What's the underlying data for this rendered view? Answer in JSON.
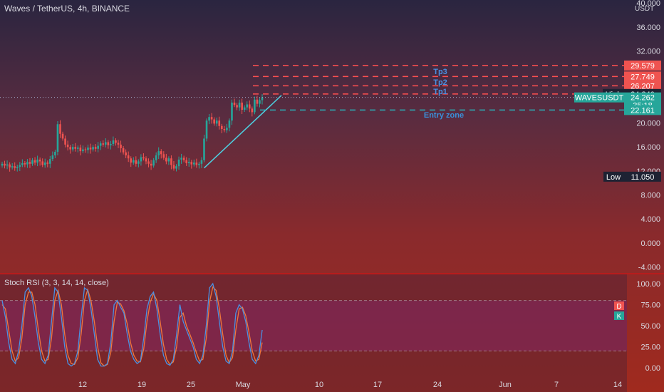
{
  "header": {
    "title": "Waves / TetherUS, 4h, BINANCE",
    "currency": "USDT"
  },
  "indicator": {
    "title": "Stoch RSI (3, 3, 14, 14, close)",
    "d_label": "D",
    "k_label": "K"
  },
  "colors": {
    "up": "#26a69a",
    "down": "#ef5350",
    "target_line": "#ff5050",
    "entry_line": "#2ab0b8",
    "trend_line": "#4dd0e1",
    "stoch_k": "#4a90e2",
    "stoch_d": "#f0763c"
  },
  "chart_data": [
    {
      "type": "candlestick",
      "title": "Waves / TetherUS, 4h, BINANCE",
      "y_ticks": [
        "40.000",
        "36.000",
        "32.000",
        "28.000",
        "24.000",
        "20.000",
        "16.000",
        "12.000",
        "8.000",
        "4.000",
        "0.000",
        "-4.000"
      ],
      "x_ticks": [
        "12",
        "19",
        "25",
        "May",
        "10",
        "17",
        "24",
        "Jun",
        "7",
        "14"
      ],
      "ylim": [
        -5,
        40.5
      ],
      "current_price": "24.262",
      "countdown": "35:18",
      "symbol": "WAVESUSDT",
      "high": {
        "label": "High",
        "value": "24.840"
      },
      "low": {
        "label": "Low",
        "value": "11.050"
      },
      "targets": [
        {
          "name": "Tp3",
          "value": "29.579"
        },
        {
          "name": "",
          "value": "27.749"
        },
        {
          "name": "Tp2",
          "value": "26.207"
        },
        {
          "name": "Tp1",
          "value": ""
        }
      ],
      "entry": {
        "name": "Entry zone",
        "value": "22.161"
      },
      "closes": [
        13.2,
        12.9,
        13.1,
        12.6,
        12.8,
        12.5,
        12.7,
        13.0,
        13.3,
        13.1,
        13.5,
        13.2,
        13.8,
        13.4,
        13.9,
        13.6,
        13.0,
        13.4,
        13.2,
        14.0,
        14.6,
        15.2,
        19.8,
        18.2,
        17.4,
        16.4,
        16.0,
        15.6,
        16.0,
        15.7,
        15.9,
        15.3,
        15.6,
        15.5,
        15.9,
        15.6,
        16.0,
        15.7,
        16.2,
        16.6,
        16.4,
        16.8,
        16.3,
        16.5,
        17.1,
        16.7,
        16.4,
        15.8,
        15.1,
        14.6,
        14.1,
        13.4,
        13.8,
        13.2,
        13.6,
        14.3,
        14.1,
        13.6,
        13.2,
        12.9,
        13.8,
        14.6,
        15.3,
        14.8,
        14.2,
        13.6,
        14.1,
        13.0,
        12.4,
        12.8,
        13.9,
        14.2,
        13.8,
        13.3,
        13.5,
        13.1,
        13.4,
        13.0,
        13.2,
        13.8,
        17.4,
        20.4,
        21.0,
        20.6,
        19.9,
        20.4,
        19.5,
        19.0,
        18.8,
        19.2,
        20.4,
        23.4,
        23.0,
        22.6,
        23.4,
        22.2,
        22.6,
        23.1,
        22.4,
        21.8,
        23.9,
        23.2,
        23.8,
        24.3
      ],
      "stoch_yticks": [
        "100.00",
        "75.00",
        "50.00",
        "25.00",
        "0.00"
      ],
      "stoch_k": [
        80,
        60,
        30,
        10,
        5,
        20,
        50,
        90,
        95,
        85,
        60,
        30,
        10,
        5,
        15,
        55,
        95,
        90,
        60,
        25,
        5,
        2,
        5,
        20,
        60,
        95,
        92,
        70,
        40,
        10,
        2,
        2,
        5,
        30,
        75,
        80,
        72,
        65,
        40,
        20,
        10,
        5,
        8,
        35,
        70,
        85,
        90,
        70,
        40,
        15,
        5,
        3,
        10,
        40,
        75,
        55,
        45,
        35,
        25,
        10,
        5,
        15,
        50,
        95,
        100,
        85,
        55,
        25,
        8,
        5,
        20,
        65,
        75,
        70,
        55,
        30,
        10,
        5,
        15,
        45
      ],
      "stoch_d": [
        75,
        70,
        45,
        20,
        8,
        12,
        35,
        75,
        90,
        90,
        75,
        45,
        20,
        8,
        10,
        35,
        80,
        92,
        75,
        40,
        15,
        5,
        4,
        12,
        40,
        80,
        93,
        80,
        55,
        25,
        6,
        2,
        4,
        18,
        55,
        78,
        76,
        68,
        52,
        30,
        15,
        8,
        7,
        22,
        55,
        78,
        88,
        80,
        55,
        28,
        10,
        4,
        7,
        25,
        60,
        65,
        50,
        40,
        30,
        18,
        8,
        10,
        35,
        78,
        96,
        92,
        70,
        40,
        15,
        6,
        12,
        45,
        70,
        72,
        62,
        42,
        20,
        8,
        10,
        30
      ]
    }
  ]
}
